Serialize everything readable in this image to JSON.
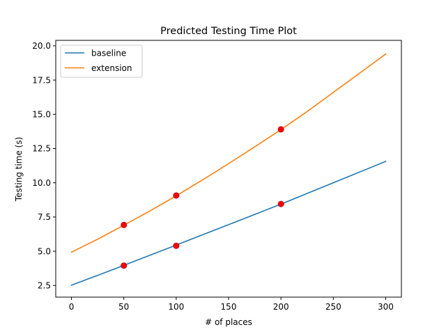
{
  "chart_data": {
    "type": "line",
    "title": "Predicted Testing Time Plot",
    "xlabel": "# of places",
    "ylabel": "Testing time (s)",
    "xlim": [
      -15,
      315
    ],
    "ylim": [
      1.65,
      20.4
    ],
    "xticks": [
      0,
      50,
      100,
      150,
      200,
      250,
      300
    ],
    "yticks": [
      2.5,
      5.0,
      7.5,
      10.0,
      12.5,
      15.0,
      17.5,
      20.0
    ],
    "xtick_labels": [
      "0",
      "50",
      "100",
      "150",
      "200",
      "250",
      "300"
    ],
    "ytick_labels": [
      "2.5",
      "5.0",
      "7.5",
      "10.0",
      "12.5",
      "15.0",
      "17.5",
      "20.0"
    ],
    "grid": false,
    "legend_position": "top-left",
    "series": [
      {
        "name": "baseline",
        "kind": "line",
        "color": "#1f77b4",
        "x": [
          0,
          25,
          50,
          75,
          100,
          125,
          150,
          175,
          200,
          225,
          250,
          275,
          300
        ],
        "y": [
          2.52,
          3.24,
          3.97,
          4.71,
          5.45,
          6.2,
          6.94,
          7.69,
          8.44,
          9.22,
          10.0,
          10.78,
          11.56
        ]
      },
      {
        "name": "extension",
        "kind": "line",
        "color": "#ff7f0e",
        "x": [
          0,
          25,
          50,
          75,
          100,
          125,
          150,
          175,
          200,
          225,
          250,
          275,
          300
        ],
        "y": [
          4.93,
          5.88,
          6.9,
          7.95,
          9.05,
          10.2,
          11.4,
          12.63,
          13.88,
          15.2,
          16.6,
          18.0,
          19.4
        ]
      },
      {
        "kind": "scatter",
        "color": "#ff0000",
        "x": [
          50,
          100,
          200,
          50,
          100,
          200
        ],
        "y": [
          3.95,
          5.4,
          8.45,
          6.92,
          9.07,
          13.9
        ]
      }
    ]
  }
}
